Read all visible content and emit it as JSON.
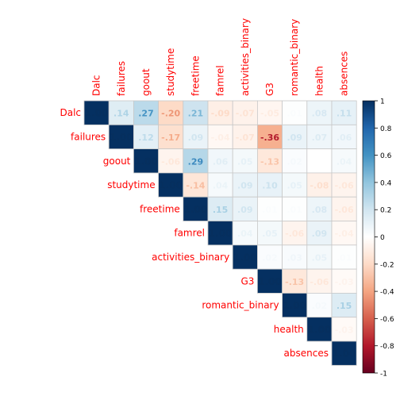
{
  "chart_data": {
    "type": "heatmap",
    "subtype": "correlation-upper-triangle",
    "variables": [
      "Dalc",
      "failures",
      "goout",
      "studytime",
      "freetime",
      "famrel",
      "activities_binary",
      "G3",
      "romantic_binary",
      "health",
      "absences"
    ],
    "label_color": "#ff0000",
    "matrix": [
      [
        1.0,
        0.14,
        0.27,
        -0.2,
        0.21,
        -0.09,
        -0.07,
        -0.05,
        0.01,
        0.08,
        0.11
      ],
      [
        null,
        1.0,
        0.12,
        -0.17,
        0.09,
        -0.04,
        -0.07,
        -0.36,
        0.09,
        0.07,
        0.06
      ],
      [
        null,
        null,
        1.0,
        -0.06,
        0.29,
        0.06,
        0.05,
        -0.13,
        0.02,
        0.0,
        0.04
      ],
      [
        null,
        null,
        null,
        1.0,
        -0.14,
        0.04,
        0.09,
        0.1,
        0.05,
        -0.08,
        -0.06
      ],
      [
        null,
        null,
        null,
        null,
        1.0,
        0.15,
        0.09,
        0.01,
        0.01,
        0.08,
        -0.06
      ],
      [
        null,
        null,
        null,
        null,
        null,
        1.0,
        0.04,
        0.05,
        -0.06,
        0.09,
        -0.04
      ],
      [
        null,
        null,
        null,
        null,
        null,
        null,
        1.0,
        0.02,
        0.03,
        0.05,
        0.01
      ],
      [
        null,
        null,
        null,
        null,
        null,
        null,
        null,
        1.0,
        -0.13,
        -0.06,
        -0.03
      ],
      [
        null,
        null,
        null,
        null,
        null,
        null,
        null,
        null,
        1.0,
        0.02,
        0.15
      ],
      [
        null,
        null,
        null,
        null,
        null,
        null,
        null,
        null,
        null,
        1.0,
        -0.03
      ],
      [
        null,
        null,
        null,
        null,
        null,
        null,
        null,
        null,
        null,
        null,
        1.0
      ]
    ],
    "colorbar": {
      "range": [
        -1,
        1
      ],
      "ticks": [
        "1",
        "0.8",
        "0.6",
        "0.4",
        "0.2",
        "0",
        "-0.2",
        "-0.4",
        "-0.6",
        "-0.8",
        "-1"
      ],
      "colors": [
        "#67001F",
        "#B2182B",
        "#D6604D",
        "#F4A582",
        "#FDDBC7",
        "#FFFFFF",
        "#D1E5F0",
        "#92C5DE",
        "#4393C3",
        "#2166AC",
        "#053061"
      ]
    },
    "grid": true,
    "legend": "right"
  }
}
